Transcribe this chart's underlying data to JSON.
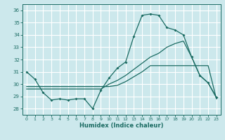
{
  "xlabel": "Humidex (Indice chaleur)",
  "bg_color": "#cce8ec",
  "grid_color": "#ffffff",
  "line_color": "#1a6b62",
  "xlim": [
    -0.5,
    23.5
  ],
  "ylim": [
    27.5,
    36.5
  ],
  "xticks": [
    0,
    1,
    2,
    3,
    4,
    5,
    6,
    7,
    8,
    9,
    10,
    11,
    12,
    13,
    14,
    15,
    16,
    17,
    18,
    19,
    20,
    21,
    22,
    23
  ],
  "yticks": [
    28,
    29,
    30,
    31,
    32,
    33,
    34,
    35,
    36
  ],
  "line1_x": [
    0,
    1,
    2,
    3,
    4,
    5,
    6,
    7,
    8,
    9,
    10,
    11,
    12,
    13,
    14,
    15,
    16,
    17,
    18,
    19,
    20,
    21,
    22,
    23
  ],
  "line1_y": [
    31.0,
    30.4,
    29.3,
    28.7,
    28.8,
    28.7,
    28.8,
    28.8,
    28.0,
    29.5,
    30.5,
    31.3,
    31.8,
    33.9,
    35.6,
    35.7,
    35.6,
    34.6,
    34.4,
    34.0,
    32.2,
    30.7,
    30.1,
    28.9
  ],
  "line2_x": [
    0,
    1,
    2,
    3,
    4,
    5,
    6,
    7,
    8,
    9,
    10,
    11,
    12,
    13,
    14,
    15,
    16,
    17,
    18,
    19,
    20,
    21,
    22,
    23
  ],
  "line2_y": [
    29.8,
    29.8,
    29.8,
    29.8,
    29.8,
    29.8,
    29.8,
    29.8,
    29.8,
    29.8,
    29.8,
    29.9,
    30.2,
    30.6,
    31.0,
    31.5,
    31.5,
    31.5,
    31.5,
    31.5,
    31.5,
    31.5,
    31.5,
    28.8
  ],
  "line3_x": [
    0,
    1,
    2,
    3,
    4,
    5,
    6,
    7,
    8,
    9,
    10,
    11,
    12,
    13,
    14,
    15,
    16,
    17,
    18,
    19,
    20,
    21,
    22,
    23
  ],
  "line3_y": [
    29.6,
    29.6,
    29.6,
    29.6,
    29.6,
    29.6,
    29.6,
    29.6,
    29.6,
    29.6,
    30.0,
    30.3,
    30.7,
    31.2,
    31.7,
    32.2,
    32.5,
    33.0,
    33.3,
    33.5,
    32.2,
    30.7,
    30.1,
    28.9
  ]
}
